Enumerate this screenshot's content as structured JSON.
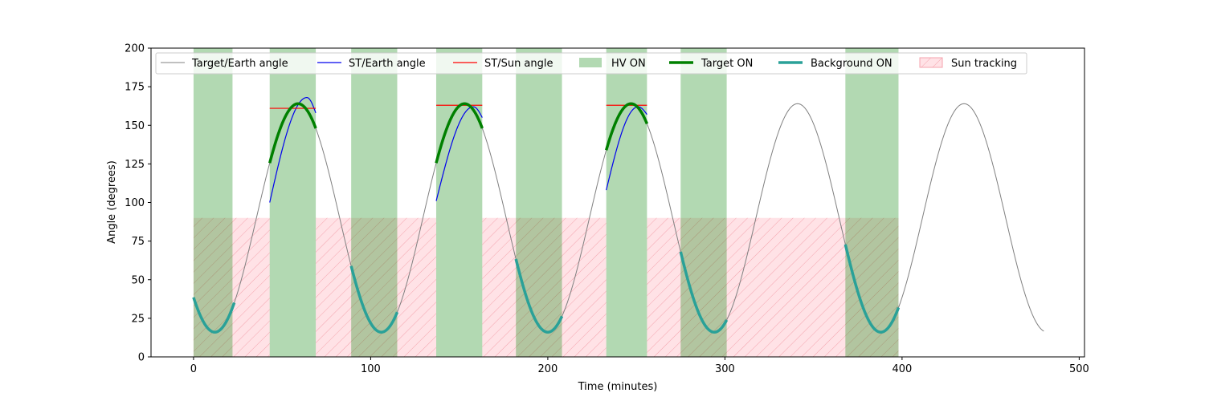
{
  "chart_data": {
    "type": "line",
    "xlabel": "Time (minutes)",
    "ylabel": "Angle (degrees)",
    "xlim": [
      -24,
      503
    ],
    "ylim": [
      0,
      200
    ],
    "xticks": [
      0,
      100,
      200,
      300,
      400,
      500
    ],
    "yticks": [
      0,
      25,
      50,
      75,
      100,
      125,
      150,
      175,
      200
    ],
    "grid": false,
    "legend_placement": "top, single row",
    "target_earth": {
      "name": "Target/Earth angle",
      "color": "#808080",
      "period": 94,
      "min": 16,
      "max": 164,
      "min_at": 12,
      "x_range": [
        0,
        480
      ]
    },
    "st_earth": {
      "name": "ST/Earth angle",
      "color": "#0000ee",
      "segments": [
        {
          "x0": 43,
          "x1": 69,
          "y0": 100,
          "ypeak": 168,
          "xpeak": 64,
          "y1": 158
        },
        {
          "x0": 137,
          "x1": 163,
          "y0": 101,
          "ypeak": 162,
          "xpeak": 158,
          "y1": 155
        },
        {
          "x0": 233,
          "x1": 256,
          "y0": 108,
          "ypeak": 162,
          "xpeak": 251,
          "y1": 157
        }
      ]
    },
    "st_sun": {
      "name": "ST/Sun angle",
      "color": "#ff0000",
      "segments": [
        {
          "x0": 43,
          "x1": 69,
          "y": 161
        },
        {
          "x0": 137,
          "x1": 163,
          "y": 163
        },
        {
          "x0": 233,
          "x1": 256,
          "y": 163
        }
      ]
    },
    "hv_on": {
      "name": "HV ON",
      "color": "#008000",
      "intervals": [
        [
          0,
          22
        ],
        [
          43,
          69
        ],
        [
          89,
          115
        ],
        [
          137,
          163
        ],
        [
          182,
          208
        ],
        [
          233,
          256
        ],
        [
          275,
          301
        ],
        [
          368,
          398
        ]
      ]
    },
    "target_on": {
      "name": "Target ON",
      "color": "#008000",
      "intervals": [
        [
          43,
          69
        ],
        [
          137,
          163
        ],
        [
          233,
          256
        ]
      ]
    },
    "background_on": {
      "name": "Background ON",
      "color": "#2aa198",
      "intervals": [
        [
          0,
          23
        ],
        [
          89,
          115
        ],
        [
          182,
          208
        ],
        [
          275,
          301
        ],
        [
          368,
          398
        ]
      ]
    },
    "sun_tracking": {
      "name": "Sun tracking",
      "color": "#ffb6c1",
      "y_range": [
        0,
        90
      ],
      "intervals": [
        [
          0,
          43
        ],
        [
          69,
          137
        ],
        [
          163,
          233
        ],
        [
          256,
          398
        ]
      ]
    }
  }
}
